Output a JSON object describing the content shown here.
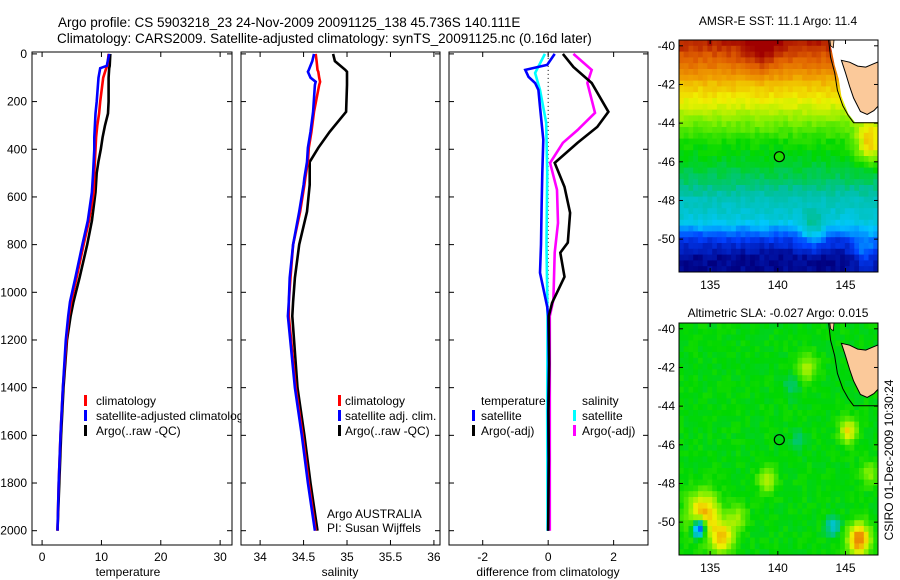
{
  "title": {
    "line1": "Argo profile: CS 5903218_23 24-Nov-2009 20091125_138 45.736S 140.111E",
    "line2": "Climatology: CARS2009. Satellite-adjusted climatology: synTS_20091125.nc (0.16d later)"
  },
  "annotations": {
    "argo_country": "Argo AUSTRALIA",
    "pi": "PI: Susan Wijffels",
    "timestamp": "CSIRO 01-Dec-2009 10:30:24"
  },
  "colors": {
    "climatology": "#ff0000",
    "satellite": "#0000ff",
    "argo": "#000000",
    "salinity_satellite": "#00ffff",
    "salinity_argo": "#ff00ff",
    "land": "#fbc99a",
    "colormap": [
      "#000080",
      "#0040ff",
      "#00c8ff",
      "#00c0a0",
      "#00d800",
      "#80f000",
      "#f0f000",
      "#f0a000",
      "#e06000",
      "#a00000"
    ]
  },
  "chart_data": [
    {
      "id": "temperature",
      "type": "line",
      "xlabel": "temperature",
      "ylabel": "",
      "xlim": [
        -1.7,
        32
      ],
      "ylim": [
        2060,
        -8
      ],
      "xticks": [
        0,
        10,
        20,
        30
      ],
      "yticks": [
        0,
        200,
        400,
        600,
        800,
        1000,
        1200,
        1400,
        1600,
        1800,
        2000
      ],
      "show_ytick_labels": true,
      "legend": [
        {
          "label": "climatology",
          "color": "#ff0000"
        },
        {
          "label": "satellite-adjusted climatology",
          "color": "#0000ff"
        },
        {
          "label": "Argo(..raw -QC)",
          "color": "#000000"
        }
      ],
      "series": [
        {
          "name": "Argo(..raw -QC)",
          "color": "#000000",
          "depth": [
            0,
            50,
            60,
            100,
            200,
            250,
            300,
            350,
            400,
            450,
            500,
            580,
            700,
            800,
            940,
            1040,
            1100,
            1200,
            1400,
            1600,
            1800,
            2000
          ],
          "values": [
            11.5,
            11.4,
            11.3,
            11.2,
            11.2,
            11.1,
            10.6,
            10.2,
            9.9,
            9.5,
            9.2,
            9.0,
            8.4,
            7.6,
            6.3,
            5.3,
            4.8,
            4.2,
            3.6,
            3.2,
            2.9,
            2.6
          ]
        },
        {
          "name": "climatology",
          "color": "#ff0000",
          "depth": [
            0,
            50,
            60,
            100,
            200,
            250,
            300,
            350,
            400,
            450,
            500,
            580,
            700,
            800,
            940,
            1040,
            1100,
            1200,
            1400,
            1600,
            1800,
            2000
          ],
          "values": [
            11.2,
            11.0,
            10.8,
            10.3,
            9.8,
            9.6,
            9.3,
            9.1,
            9.0,
            8.9,
            8.8,
            8.7,
            7.9,
            7.0,
            5.8,
            4.9,
            4.5,
            4.1,
            3.5,
            3.1,
            2.8,
            2.6
          ]
        },
        {
          "name": "satellite-adjusted climatology",
          "color": "#0000ff",
          "depth": [
            0,
            50,
            60,
            100,
            200,
            250,
            300,
            350,
            400,
            450,
            500,
            580,
            700,
            800,
            940,
            1040,
            1100,
            1200,
            1400,
            1600,
            1800,
            2000
          ],
          "values": [
            11.3,
            10.9,
            9.8,
            9.5,
            9.2,
            9.0,
            8.9,
            8.8,
            8.8,
            8.7,
            8.6,
            8.4,
            7.7,
            6.8,
            5.6,
            4.7,
            4.4,
            4.0,
            3.5,
            3.1,
            2.8,
            2.6
          ]
        }
      ]
    },
    {
      "id": "salinity",
      "type": "line",
      "xlabel": "salinity",
      "ylabel": "",
      "xlim": [
        33.78,
        36.07
      ],
      "ylim": [
        2060,
        -8
      ],
      "xticks": [
        34,
        34.5,
        35,
        35.5,
        36
      ],
      "yticks": [
        0,
        200,
        400,
        600,
        800,
        1000,
        1200,
        1400,
        1600,
        1800,
        2000
      ],
      "show_ytick_labels": false,
      "legend": [
        {
          "label": "climatology",
          "color": "#ff0000"
        },
        {
          "label": "satellite adj. clim.",
          "color": "#0000ff"
        },
        {
          "label": "Argo(..raw -QC)",
          "color": "#000000"
        }
      ],
      "series": [
        {
          "name": "Argo(..raw -QC)",
          "color": "#000000",
          "depth": [
            0,
            30,
            67,
            75,
            100,
            117,
            130,
            243,
            327,
            394,
            453,
            520,
            549,
            662,
            800,
            939,
            1040,
            1100,
            1400,
            1600,
            1800,
            2000
          ],
          "values": [
            34.84,
            34.86,
            34.98,
            35.0,
            35.0,
            35.0,
            35.0,
            34.99,
            34.8,
            34.67,
            34.57,
            34.57,
            34.57,
            34.54,
            34.45,
            34.4,
            34.38,
            34.37,
            34.43,
            34.51,
            34.58,
            34.66
          ]
        },
        {
          "name": "climatology",
          "color": "#ff0000",
          "depth": [
            0,
            30,
            67,
            75,
            100,
            117,
            130,
            243,
            327,
            394,
            453,
            520,
            549,
            662,
            800,
            939,
            1040,
            1100,
            1400,
            1600,
            1800,
            2000
          ],
          "values": [
            34.64,
            34.65,
            34.66,
            34.67,
            34.68,
            34.69,
            34.68,
            34.62,
            34.59,
            34.56,
            34.55,
            34.52,
            34.51,
            34.46,
            34.38,
            34.35,
            34.33,
            34.33,
            34.41,
            34.49,
            34.56,
            34.64
          ]
        },
        {
          "name": "satellite adj. clim.",
          "color": "#0000ff",
          "depth": [
            0,
            30,
            67,
            75,
            100,
            117,
            130,
            243,
            327,
            394,
            453,
            520,
            549,
            662,
            800,
            939,
            1040,
            1100,
            1400,
            1600,
            1800,
            2000
          ],
          "values": [
            34.62,
            34.6,
            34.56,
            34.55,
            34.58,
            34.64,
            34.63,
            34.61,
            34.58,
            34.55,
            34.54,
            34.51,
            34.5,
            34.45,
            34.38,
            34.34,
            34.33,
            34.32,
            34.4,
            34.48,
            34.55,
            34.63
          ]
        }
      ]
    },
    {
      "id": "difference",
      "type": "line",
      "xlabel": "difference from climatology",
      "ylabel": "",
      "xlim": [
        -3.03,
        3.05
      ],
      "ylim": [
        2060,
        -8
      ],
      "xticks": [
        -2,
        0,
        2
      ],
      "yticks": [
        0,
        200,
        400,
        600,
        800,
        1000,
        1200,
        1400,
        1600,
        1800,
        2000
      ],
      "show_ytick_labels": false,
      "zero_line": true,
      "legend_headers": [
        "temperature",
        "salinity"
      ],
      "legend": [
        {
          "label": "satellite",
          "color": "#0000ff"
        },
        {
          "label": "Argo(-adj)",
          "color": "#000000"
        },
        {
          "label": "satellite",
          "color": "#00ffff"
        },
        {
          "label": "Argo(-adj)",
          "color": "#ff00ff"
        }
      ],
      "series": [
        {
          "name": "salinity satellite",
          "color": "#00ffff",
          "depth": [
            0,
            80,
            151,
            289,
            499,
            800,
            1100,
            1500,
            2000
          ],
          "values": [
            -0.1,
            -0.4,
            -0.25,
            -0.06,
            -0.03,
            -0.05,
            -0.02,
            -0.03,
            -0.02
          ]
        },
        {
          "name": "temperature satellite",
          "color": "#0000ff",
          "depth": [
            0,
            46,
            67,
            96,
            122,
            151,
            222,
            360,
            500,
            642,
            800,
            918,
            1061,
            1100,
            1300,
            1500,
            1700,
            2000
          ],
          "values": [
            0.2,
            -0.03,
            -0.7,
            -0.6,
            -0.4,
            -0.3,
            -0.25,
            -0.15,
            -0.18,
            -0.2,
            -0.22,
            -0.25,
            -0.03,
            0,
            0.02,
            0,
            0.01,
            0
          ]
        },
        {
          "name": "salinity Argo(-adj)",
          "color": "#ff00ff",
          "depth": [
            0,
            67,
            122,
            247,
            319,
            373,
            457,
            570,
            709,
            834,
            1031,
            1100,
            1500,
            2000
          ],
          "values": [
            0.77,
            1.33,
            1.2,
            1.43,
            0.9,
            0.45,
            0.06,
            0.27,
            0.3,
            0.2,
            0.16,
            0.05,
            0.05,
            0.05
          ]
        },
        {
          "name": "temperature Argo(-adj)",
          "color": "#000000",
          "depth": [
            0,
            55,
            122,
            243,
            306,
            373,
            457,
            558,
            667,
            792,
            834,
            935,
            1044,
            1100,
            1300,
            1500,
            1700,
            2000
          ],
          "values": [
            0.45,
            0.77,
            1.33,
            1.84,
            1.5,
            0.9,
            0.2,
            0.5,
            0.67,
            0.6,
            0.37,
            0.5,
            0.12,
            0.02,
            0.03,
            0.01,
            0.02,
            0.0
          ]
        }
      ]
    },
    {
      "id": "sst_map",
      "type": "heatmap",
      "title": "AMSR-E SST: 11.1 Argo: 11.4",
      "xlim": [
        132.7,
        147.4
      ],
      "ylim": [
        -51.7,
        -39.7
      ],
      "xticks": [
        135,
        140,
        145
      ],
      "yticks": [
        -40,
        -42,
        -44,
        -46,
        -48,
        -50
      ],
      "clim": [
        7.5,
        15.8
      ],
      "argo_position": {
        "lon": 140.111,
        "lat": -45.736,
        "value": 11.4
      },
      "base_by_lat": {
        "lat": [
          -39.7,
          -41,
          -42,
          -43,
          -44,
          -45,
          -46,
          -47,
          -48,
          -49,
          -50,
          -51,
          -51.7
        ],
        "value": [
          15.6,
          14.6,
          13.6,
          12.9,
          12.0,
          11.3,
          11.0,
          10.6,
          10.0,
          9.7,
          8.3,
          7.6,
          7.6
        ]
      },
      "features": [
        {
          "lon": 146.8,
          "lat": -45.0,
          "amp": 2.2,
          "r": 1.0
        },
        {
          "lon": 138.8,
          "lat": -40.0,
          "amp": 0.8,
          "r": 1.3
        },
        {
          "lon": 142.6,
          "lat": -49.6,
          "amp": 1.0,
          "r": 0.9
        },
        {
          "lon": 146.5,
          "lat": -50.5,
          "amp": 0.9,
          "r": 1.0
        }
      ]
    },
    {
      "id": "sla_map",
      "type": "heatmap",
      "title": "Altimetric SLA: -0.027 Argo: 0.015",
      "xlim": [
        132.7,
        147.4
      ],
      "ylim": [
        -51.7,
        -39.7
      ],
      "xticks": [
        135,
        140,
        145
      ],
      "yticks": [
        -40,
        -42,
        -44,
        -46,
        -48,
        -50
      ],
      "clim": [
        -0.3,
        0.3
      ],
      "argo_position": {
        "lon": 140.111,
        "lat": -45.736,
        "value": 0.015
      },
      "base_by_lat": {
        "lat": [
          -39.7,
          -51.7
        ],
        "value": [
          -0.035,
          -0.035
        ]
      },
      "features": [
        {
          "lon": 134.5,
          "lat": -49.6,
          "amp": 0.2,
          "r": 1.1
        },
        {
          "lon": 135.9,
          "lat": -50.8,
          "amp": 0.17,
          "r": 0.8
        },
        {
          "lon": 134.2,
          "lat": -50.3,
          "amp": -0.3,
          "r": 0.5
        },
        {
          "lon": 146.0,
          "lat": -50.9,
          "amp": 0.24,
          "r": 0.8
        },
        {
          "lon": 145.2,
          "lat": -45.3,
          "amp": 0.15,
          "r": 0.6
        },
        {
          "lon": 139.2,
          "lat": -47.8,
          "amp": 0.11,
          "r": 0.6
        },
        {
          "lon": 142.2,
          "lat": -42.0,
          "amp": 0.09,
          "r": 0.7
        },
        {
          "lon": 144.1,
          "lat": -50.2,
          "amp": -0.1,
          "r": 0.5
        },
        {
          "lon": 141.5,
          "lat": -45.8,
          "amp": -0.05,
          "r": 0.5
        },
        {
          "lon": 141.0,
          "lat": -43.0,
          "amp": -0.04,
          "r": 0.6
        },
        {
          "lon": 146.8,
          "lat": -47.5,
          "amp": 0.07,
          "r": 0.6
        },
        {
          "lon": 137.0,
          "lat": -49.8,
          "amp": 0.08,
          "r": 0.7
        }
      ]
    }
  ]
}
